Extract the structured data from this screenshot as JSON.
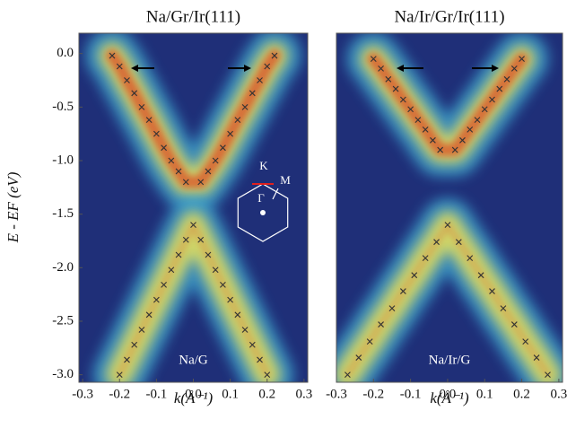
{
  "chart_data": [
    {
      "type": "scatter",
      "title": "Na/Gr/Ir(111)",
      "x_label": "k(Å⁻¹)",
      "y_label": "E - EF (eV)",
      "annotation": "Na/G",
      "inset_labels": [
        "K",
        "M",
        "Γ"
      ],
      "xlim": [
        -0.31,
        0.31
      ],
      "ylim": [
        -3.07,
        0.19
      ],
      "xticks": [
        -0.3,
        -0.2,
        -0.1,
        {
          "value": 0,
          "label": "0.0"
        },
        0.1,
        0.2,
        0.3
      ],
      "yticks": [
        {
          "value": 0,
          "label": "0.0"
        },
        -0.5,
        {
          "value": -1,
          "label": "-1.0"
        },
        -1.5,
        {
          "value": -2,
          "label": "-2.0"
        },
        -2.5,
        {
          "value": -3,
          "label": "-3.0"
        }
      ],
      "series": [
        {
          "color": "#333333",
          "x": [
            -0.22,
            -0.2,
            -0.18,
            -0.16,
            -0.14,
            -0.12,
            -0.1,
            -0.08,
            -0.06,
            -0.04,
            -0.02,
            0.02,
            0.04,
            0.06,
            0.08,
            0.1,
            0.12,
            0.14,
            0.16,
            0.18,
            0.2,
            0.22
          ],
          "values": [
            -0.02,
            -0.12,
            -0.25,
            -0.37,
            -0.5,
            -0.62,
            -0.75,
            -0.88,
            -1.0,
            -1.1,
            -1.2,
            -1.2,
            -1.1,
            -1.0,
            -0.88,
            -0.75,
            -0.62,
            -0.5,
            -0.37,
            -0.25,
            -0.12,
            -0.02
          ]
        },
        {
          "color": "#333333",
          "x": [
            -0.2,
            -0.18,
            -0.16,
            -0.14,
            -0.12,
            -0.1,
            -0.08,
            -0.06,
            -0.04,
            -0.02,
            0,
            0.02,
            0.04,
            0.06,
            0.08,
            0.1,
            0.12,
            0.14,
            0.16,
            0.18,
            0.2
          ],
          "values": [
            -3.0,
            -2.86,
            -2.72,
            -2.58,
            -2.44,
            -2.3,
            -2.16,
            -2.02,
            -1.88,
            -1.74,
            -1.6,
            -1.74,
            -1.88,
            -2.02,
            -2.16,
            -2.3,
            -2.44,
            -2.58,
            -2.72,
            -2.86,
            -3.0
          ]
        }
      ]
    },
    {
      "type": "scatter",
      "title": "Na/Ir/Gr/Ir(111)",
      "x_label": "k(Å⁻¹)",
      "annotation": "Na/Ir/G",
      "xlim": [
        -0.3,
        0.31
      ],
      "ylim": [
        -3.07,
        0.19
      ],
      "xticks": [
        -0.3,
        -0.2,
        -0.1,
        {
          "value": 0,
          "label": "0.0"
        },
        0.1,
        0.2,
        0.3
      ],
      "series": [
        {
          "color": "#333333",
          "x": [
            -0.2,
            -0.18,
            -0.16,
            -0.14,
            -0.12,
            -0.1,
            -0.08,
            -0.06,
            -0.04,
            -0.02,
            0.02,
            0.04,
            0.06,
            0.08,
            0.1,
            0.12,
            0.14,
            0.16,
            0.18,
            0.2
          ],
          "values": [
            -0.05,
            -0.14,
            -0.24,
            -0.33,
            -0.43,
            -0.52,
            -0.62,
            -0.71,
            -0.81,
            -0.9,
            -0.9,
            -0.81,
            -0.71,
            -0.62,
            -0.52,
            -0.43,
            -0.33,
            -0.24,
            -0.14,
            -0.05
          ]
        },
        {
          "color": "#333333",
          "x": [
            -0.27,
            -0.24,
            -0.21,
            -0.18,
            -0.15,
            -0.12,
            -0.09,
            -0.06,
            -0.03,
            0,
            0.03,
            0.06,
            0.09,
            0.12,
            0.15,
            0.18,
            0.21,
            0.24,
            0.27
          ],
          "values": [
            -3.0,
            -2.84,
            -2.69,
            -2.53,
            -2.38,
            -2.22,
            -2.07,
            -1.91,
            -1.76,
            -1.6,
            -1.76,
            -1.91,
            -2.07,
            -2.22,
            -2.38,
            -2.53,
            -2.69,
            -2.84,
            -3.0
          ]
        }
      ]
    }
  ]
}
